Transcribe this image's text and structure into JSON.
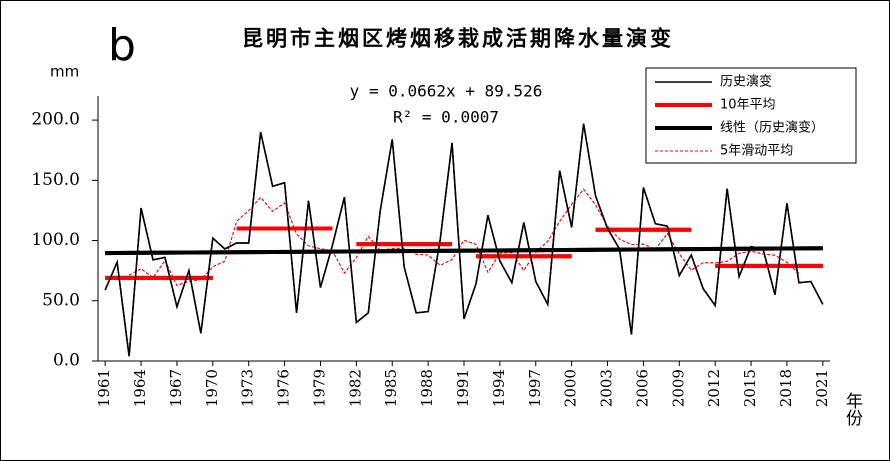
{
  "chart_data": {
    "type": "line",
    "panel_label": "b",
    "title": "昆明市主烟区烤烟移栽成活期降水量演变",
    "y_label": "mm",
    "x_label": "年份",
    "equation": "y = 0.0662x + 89.526",
    "r_squared": "R² = 0.0007",
    "x": [
      1961,
      1962,
      1963,
      1964,
      1965,
      1966,
      1967,
      1968,
      1969,
      1970,
      1971,
      1972,
      1973,
      1974,
      1975,
      1976,
      1977,
      1978,
      1979,
      1980,
      1981,
      1982,
      1983,
      1984,
      1985,
      1986,
      1987,
      1988,
      1989,
      1990,
      1991,
      1992,
      1993,
      1994,
      1995,
      1996,
      1997,
      1998,
      1999,
      2000,
      2001,
      2002,
      2003,
      2004,
      2005,
      2006,
      2007,
      2008,
      2009,
      2010,
      2011,
      2012,
      2013,
      2014,
      2015,
      2016,
      2017,
      2018,
      2019,
      2020,
      2021
    ],
    "xlim": [
      1960.4,
      2021.6
    ],
    "xticks": [
      1961,
      1964,
      1967,
      1970,
      1973,
      1976,
      1979,
      1982,
      1985,
      1988,
      1991,
      1994,
      1997,
      2000,
      2003,
      2006,
      2009,
      2012,
      2015,
      2018,
      2021
    ],
    "ylim": [
      0,
      220
    ],
    "yticks": [
      {
        "value": 0,
        "label": "0.0"
      },
      {
        "value": 50,
        "label": "50.0"
      },
      {
        "value": 100,
        "label": "100.0"
      },
      {
        "value": 150,
        "label": "150.0"
      },
      {
        "value": 200,
        "label": "200.0"
      }
    ],
    "legend_position": "upper right",
    "series": [
      {
        "name": "历史演变",
        "color": "#000000",
        "width": 1.5,
        "dashed": false,
        "values": [
          59,
          82,
          4,
          127,
          84,
          86,
          45,
          75,
          23,
          102,
          93,
          98,
          98,
          190,
          145,
          148,
          40,
          133,
          61,
          96,
          136,
          32,
          40,
          125,
          184,
          78,
          40,
          41,
          100,
          181,
          35,
          64,
          121,
          83,
          65,
          115,
          66,
          47,
          158,
          111,
          197,
          137,
          110,
          93,
          22,
          144,
          114,
          112,
          71,
          88,
          60,
          46,
          143,
          70,
          95,
          93,
          55,
          131,
          65,
          66,
          47
        ]
      },
      {
        "name": "10年平均",
        "color": "#ff0000",
        "width": 4,
        "dashed": false,
        "values": [
          69,
          69,
          69,
          69,
          69,
          69,
          69,
          69,
          69,
          69,
          null,
          110,
          110,
          110,
          110,
          110,
          110,
          110,
          110,
          110,
          null,
          97,
          97,
          97,
          97,
          97,
          97,
          97,
          97,
          97,
          null,
          87,
          87,
          87,
          87,
          87,
          87,
          87,
          87,
          87,
          null,
          109,
          109,
          109,
          109,
          109,
          109,
          109,
          109,
          109,
          null,
          79,
          79,
          79,
          79,
          79,
          79,
          79,
          79,
          79,
          79
        ]
      },
      {
        "name": "线性（历史演变）",
        "color": "#000000",
        "width": 4,
        "dashed": false,
        "x": [
          1961,
          2021
        ],
        "values": [
          89.6,
          93.6
        ]
      },
      {
        "name": "5年滑动平均",
        "color": "#ff0000",
        "width": 1,
        "dashed": true,
        "values": [
          null,
          null,
          71.2,
          76.6,
          69.2,
          83.4,
          62.6,
          66.2,
          67.6,
          78.2,
          82.8,
          116.2,
          124.8,
          135.8,
          124.2,
          131.2,
          105.4,
          95.6,
          93.2,
          91.6,
          73,
          85.8,
          103.4,
          91.8,
          93.4,
          93.6,
          88.6,
          88,
          79.4,
          84.2,
          100.2,
          96.8,
          73.6,
          89.6,
          90,
          75.2,
          90.2,
          99.4,
          115.8,
          130,
          142.6,
          129.6,
          111.8,
          101.2,
          96.6,
          97,
          92.6,
          105.8,
          89,
          75.4,
          81.6,
          81.4,
          82.8,
          89.4,
          91.2,
          88.8,
          87.8,
          82,
          72.8,
          null,
          null
        ]
      }
    ]
  }
}
